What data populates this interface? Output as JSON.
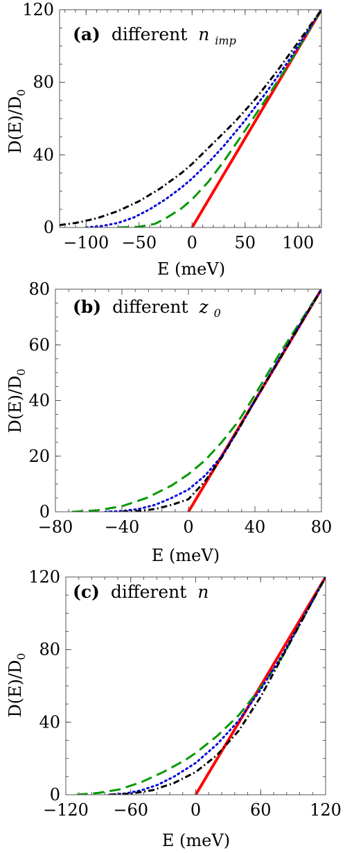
{
  "chart_data": [
    {
      "type": "line",
      "panel_label": "(a)",
      "title_word": "different",
      "title_symbol": "n",
      "title_symbol_sub": "imp",
      "xlabel": "E (meV)",
      "ylabel": "D(E)/D",
      "ylabel_sub": "0",
      "xlim": [
        -125,
        122
      ],
      "ylim": [
        0,
        120
      ],
      "xticks": [
        "−100",
        "−50",
        "0",
        "50",
        "100"
      ],
      "xtick_values": [
        -100,
        -50,
        0,
        50,
        100
      ],
      "yticks": [
        "0",
        "40",
        "80",
        "120"
      ],
      "ytick_values": [
        0,
        40,
        80,
        120
      ],
      "series": [
        {
          "color": "#ff0000",
          "style": "solid",
          "x": [
            0,
            20,
            40,
            60,
            80,
            100,
            122
          ],
          "y": [
            0,
            19.7,
            39.3,
            59,
            78.7,
            98.4,
            120
          ]
        },
        {
          "color": "#009900",
          "style": "dashed",
          "x": [
            -70,
            -50,
            -35,
            -25,
            -10,
            0,
            15,
            30,
            50,
            70,
            90,
            122
          ],
          "y": [
            0,
            0.4,
            2,
            5,
            10.5,
            15.5,
            25,
            36.5,
            53.5,
            71,
            89,
            120
          ]
        },
        {
          "color": "#0000dd",
          "style": "dotted",
          "x": [
            -100,
            -85,
            -70,
            -55,
            -40,
            -25,
            -10,
            0,
            15,
            30,
            50,
            70,
            90,
            122
          ],
          "y": [
            0,
            0.8,
            2.5,
            5.5,
            10,
            15.5,
            22,
            27,
            35.5,
            45,
            59,
            74.5,
            91,
            120
          ]
        },
        {
          "color": "#000000",
          "style": "dashdot",
          "x": [
            -125,
            -110,
            -90,
            -70,
            -50,
            -30,
            -10,
            0,
            20,
            40,
            60,
            80,
            100,
            122
          ],
          "y": [
            1.3,
            2.5,
            5,
            9,
            14.5,
            21.5,
            30,
            35,
            46.5,
            58,
            71,
            86,
            102,
            120
          ]
        }
      ]
    },
    {
      "type": "line",
      "panel_label": "(b)",
      "title_word": "different",
      "title_symbol": "z",
      "title_symbol_sub": "0",
      "xlabel": "E (meV)",
      "ylabel": "D(E)/D",
      "ylabel_sub": "0",
      "xlim": [
        -80,
        80
      ],
      "ylim": [
        0,
        80
      ],
      "xticks": [
        "−80",
        "−40",
        "0",
        "40",
        "80"
      ],
      "xtick_values": [
        -80,
        -40,
        0,
        40,
        80
      ],
      "yticks": [
        "0",
        "20",
        "40",
        "60",
        "80"
      ],
      "ytick_values": [
        0,
        20,
        40,
        60,
        80
      ],
      "series": [
        {
          "color": "#ff0000",
          "style": "solid",
          "x": [
            0,
            20,
            40,
            60,
            80
          ],
          "y": [
            0,
            20,
            40,
            60,
            80
          ]
        },
        {
          "color": "#009900",
          "style": "dashed",
          "x": [
            -70,
            -55,
            -40,
            -25,
            -10,
            0,
            10,
            20,
            30,
            40,
            55,
            80
          ],
          "y": [
            0,
            0.5,
            2,
            5,
            9.5,
            13.5,
            18.5,
            25,
            32.5,
            42,
            57,
            80
          ]
        },
        {
          "color": "#0000dd",
          "style": "dotted",
          "x": [
            -50,
            -40,
            -30,
            -20,
            -10,
            0,
            10,
            20,
            30,
            40,
            55,
            80
          ],
          "y": [
            0,
            0.3,
            1,
            2.5,
            5,
            8,
            13,
            20,
            29.5,
            40,
            55.5,
            80
          ]
        },
        {
          "color": "#000000",
          "style": "dashdot",
          "x": [
            -40,
            -30,
            -20,
            -10,
            0,
            10,
            20,
            30,
            40,
            55,
            80
          ],
          "y": [
            0,
            0.3,
            1,
            2.5,
            4.5,
            11,
            19.5,
            29.5,
            40,
            55,
            80
          ]
        }
      ]
    },
    {
      "type": "line",
      "panel_label": "(c)",
      "title_word": "different",
      "title_symbol": "n",
      "title_symbol_sub": "",
      "xlabel": "E (meV)",
      "ylabel": "D(E)/D",
      "ylabel_sub": "0",
      "xlim": [
        -120,
        120
      ],
      "ylim": [
        0,
        120
      ],
      "xticks": [
        "−120",
        "−60",
        "0",
        "60",
        "120"
      ],
      "xtick_values": [
        -120,
        -60,
        0,
        60,
        120
      ],
      "yticks": [
        "0",
        "40",
        "80",
        "120"
      ],
      "ytick_values": [
        0,
        40,
        80,
        120
      ],
      "series": [
        {
          "color": "#ff0000",
          "style": "solid",
          "x": [
            0,
            30,
            60,
            90,
            120
          ],
          "y": [
            0,
            30,
            60,
            90,
            120
          ]
        },
        {
          "color": "#009900",
          "style": "dashed",
          "x": [
            -110,
            -90,
            -70,
            -50,
            -30,
            -10,
            0,
            20,
            40,
            60,
            80,
            120
          ],
          "y": [
            0,
            1,
            3,
            7,
            12.5,
            19,
            23,
            32.5,
            44,
            59,
            76,
            120
          ]
        },
        {
          "color": "#0000dd",
          "style": "dotted",
          "x": [
            -80,
            -65,
            -50,
            -35,
            -20,
            0,
            20,
            40,
            60,
            80,
            120
          ],
          "y": [
            0,
            0.7,
            2.5,
            5.5,
            10,
            17.5,
            28,
            41,
            58,
            77,
            120
          ]
        },
        {
          "color": "#000000",
          "style": "dashdot",
          "x": [
            -80,
            -60,
            -40,
            -20,
            0,
            20,
            40,
            60,
            80,
            120
          ],
          "y": [
            0,
            0.6,
            2.5,
            6.5,
            12.5,
            22,
            35.5,
            54,
            76,
            120
          ]
        }
      ]
    }
  ]
}
